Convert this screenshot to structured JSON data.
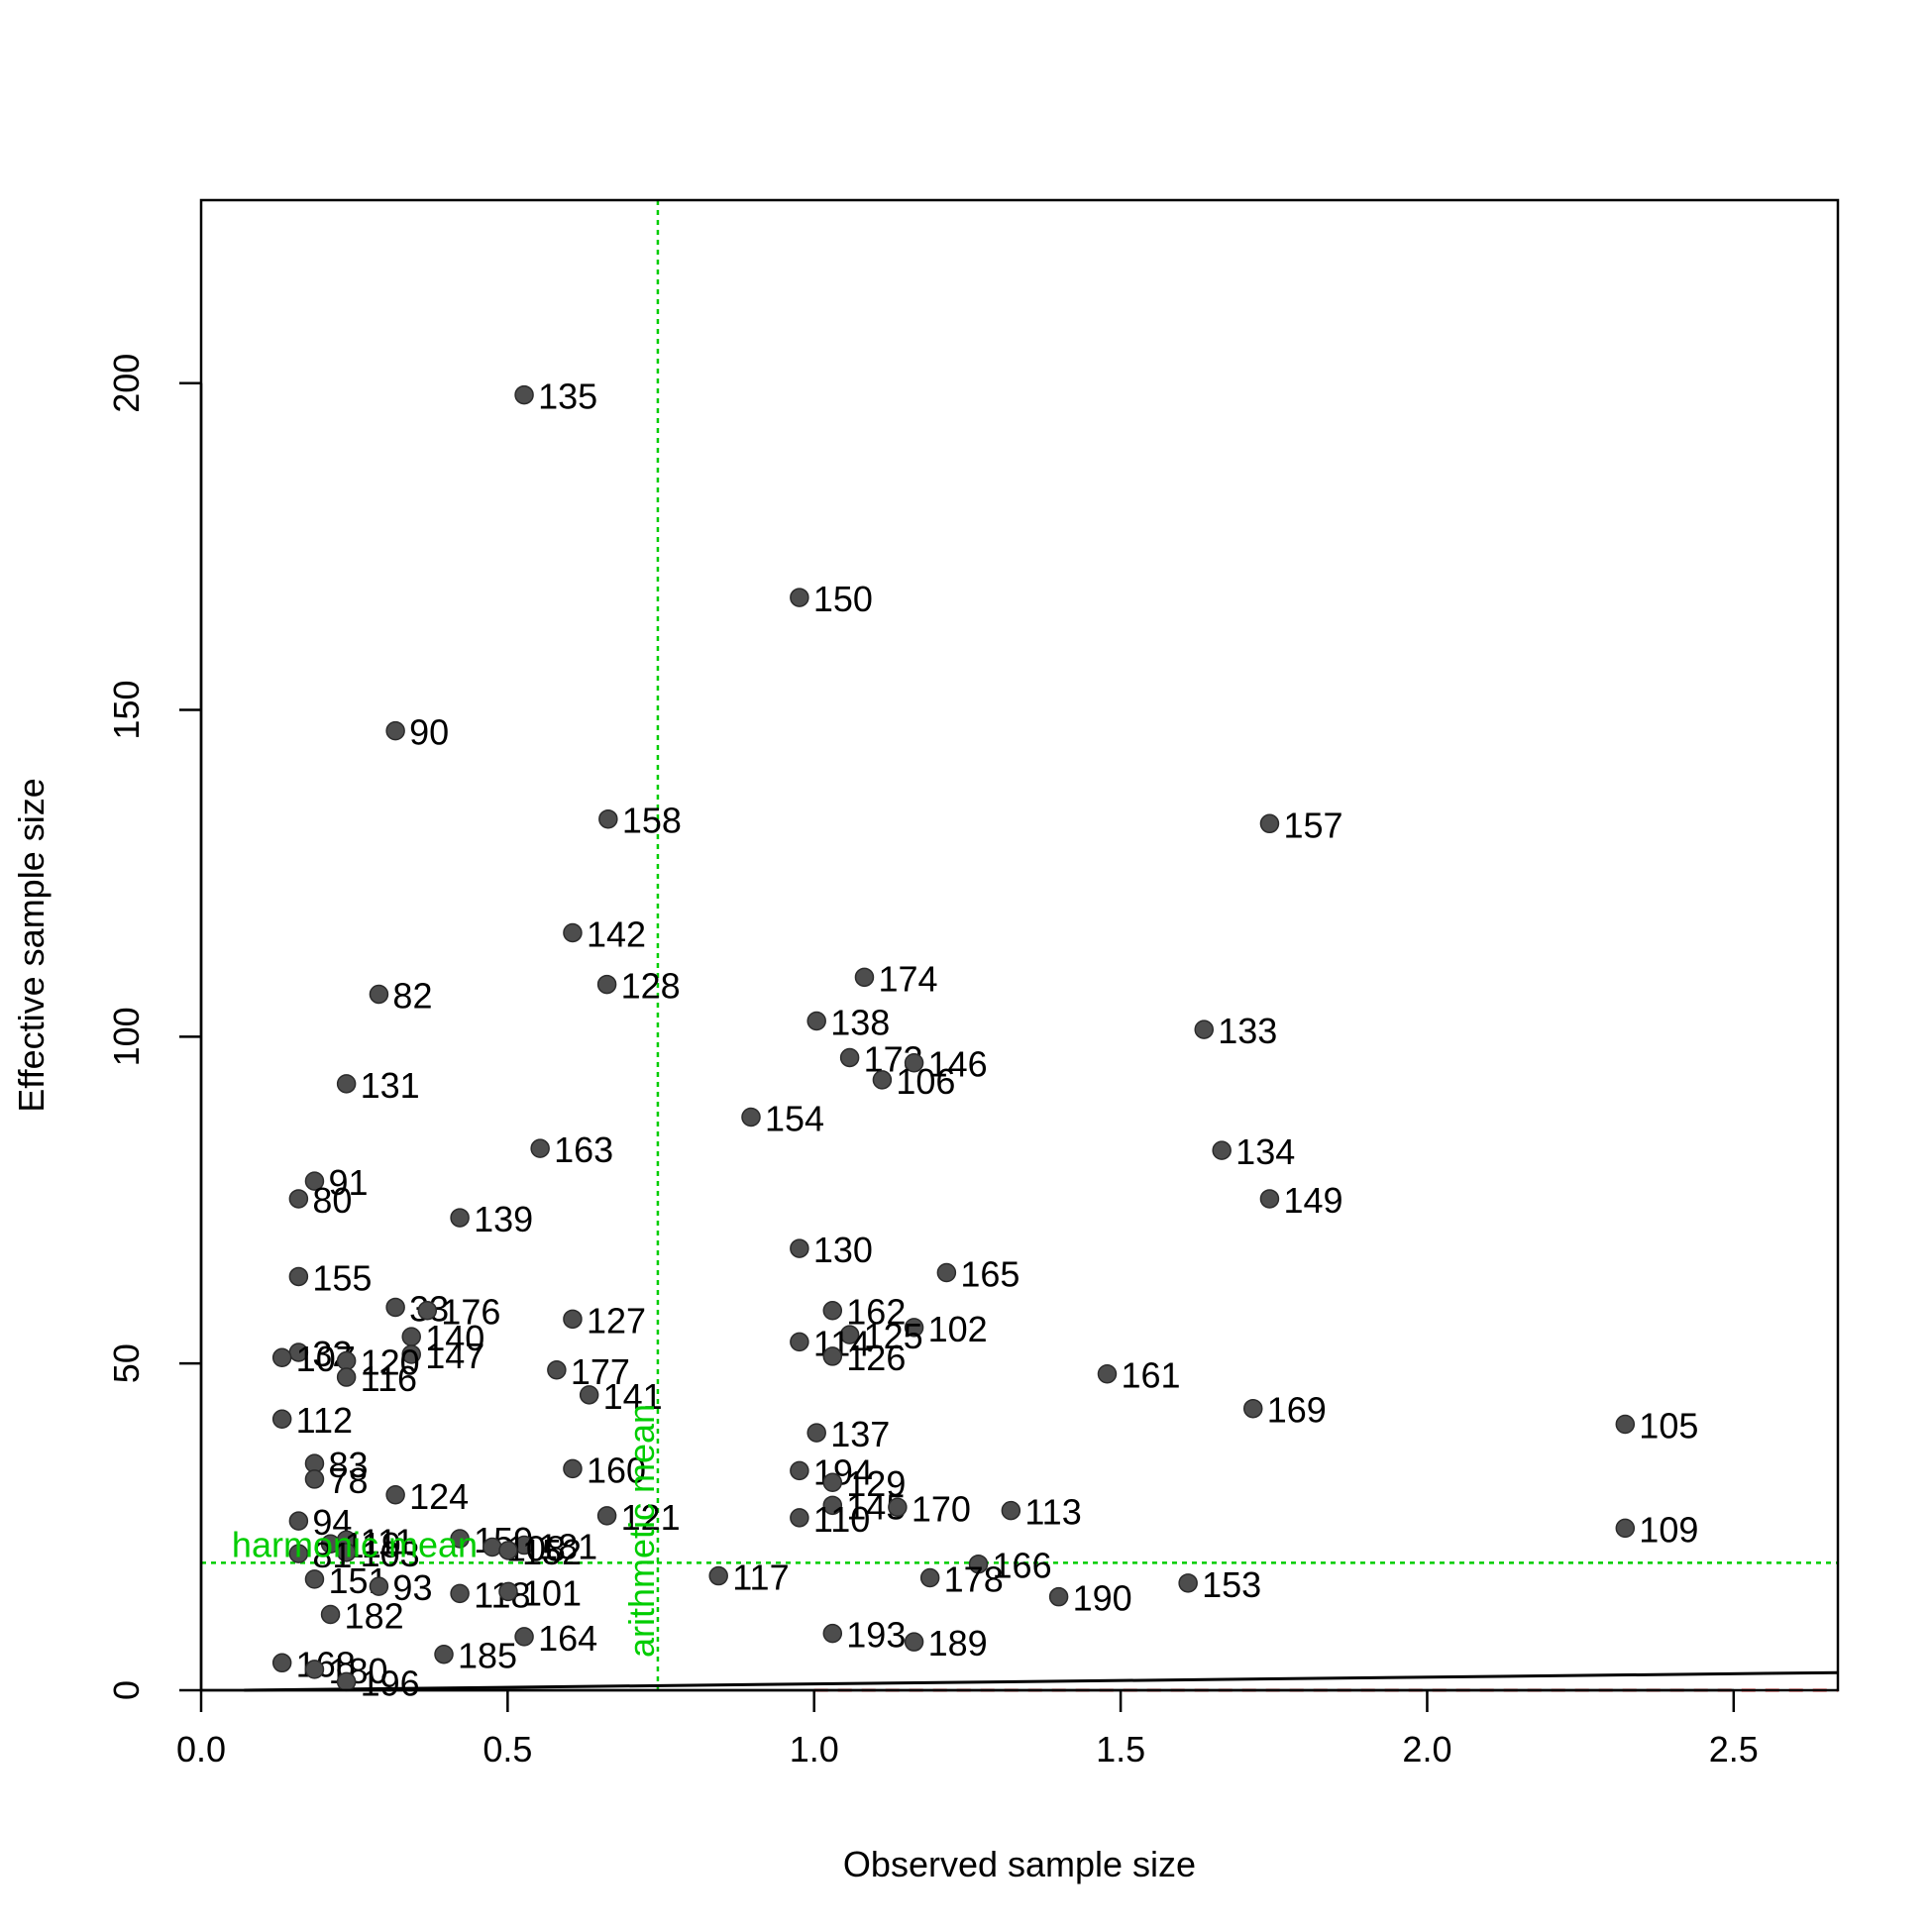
{
  "chart_data": {
    "type": "scatter",
    "xlabel": "Observed sample size",
    "ylabel": "Effective sample size",
    "xlim": [
      0.0,
      2.67
    ],
    "ylim": [
      0,
      228
    ],
    "xticks": [
      0.0,
      0.5,
      1.0,
      1.5,
      2.0,
      2.5
    ],
    "xtick_labels": [
      "0.0",
      "0.5",
      "1.0",
      "1.5",
      "2.0",
      "2.5"
    ],
    "yticks": [
      0,
      50,
      100,
      150,
      200
    ],
    "ytick_labels": [
      "0",
      "50",
      "100",
      "150",
      "200"
    ],
    "grid": false,
    "point_color": "#4d4d4d",
    "reference_color": "#00cd00",
    "null_line_color": "#ff0000",
    "reference_lines": [
      {
        "orientation": "vertical",
        "value": 0.745,
        "label": "arithmetic mean"
      },
      {
        "orientation": "horizontal",
        "value": 19.5,
        "label": "harmonic mean"
      }
    ],
    "trend_line": {
      "x": [
        0.07,
        2.67
      ],
      "y": [
        0.0,
        2.7
      ]
    },
    "null_line": {
      "x": [
        1.0,
        2.67
      ],
      "y": [
        0.0,
        0.0
      ]
    },
    "points": [
      {
        "label": "135",
        "x": 0.527,
        "y": 198.2
      },
      {
        "label": "150",
        "x": 0.976,
        "y": 167.2
      },
      {
        "label": "90",
        "x": 0.317,
        "y": 146.8
      },
      {
        "label": "158",
        "x": 0.664,
        "y": 133.3
      },
      {
        "label": "157",
        "x": 1.743,
        "y": 132.6
      },
      {
        "label": "142",
        "x": 0.606,
        "y": 115.9
      },
      {
        "label": "174",
        "x": 1.082,
        "y": 109.1
      },
      {
        "label": "128",
        "x": 0.662,
        "y": 108.0
      },
      {
        "label": "82",
        "x": 0.29,
        "y": 106.5
      },
      {
        "label": "138",
        "x": 1.004,
        "y": 102.4
      },
      {
        "label": "133",
        "x": 1.636,
        "y": 101.1
      },
      {
        "label": "173",
        "x": 1.058,
        "y": 96.8
      },
      {
        "label": "146",
        "x": 1.163,
        "y": 96.0
      },
      {
        "label": "106",
        "x": 1.111,
        "y": 93.4
      },
      {
        "label": "131",
        "x": 0.237,
        "y": 92.8
      },
      {
        "label": "154",
        "x": 0.897,
        "y": 87.7
      },
      {
        "label": "163",
        "x": 0.553,
        "y": 82.9
      },
      {
        "label": "134",
        "x": 1.665,
        "y": 82.6
      },
      {
        "label": "91",
        "x": 0.185,
        "y": 77.9
      },
      {
        "label": "80",
        "x": 0.159,
        "y": 75.2
      },
      {
        "label": "149",
        "x": 1.743,
        "y": 75.2
      },
      {
        "label": "139",
        "x": 0.422,
        "y": 72.3
      },
      {
        "label": "130",
        "x": 0.976,
        "y": 67.6
      },
      {
        "label": "165",
        "x": 1.216,
        "y": 63.9
      },
      {
        "label": "155",
        "x": 0.159,
        "y": 63.3
      },
      {
        "label": "33",
        "x": 0.317,
        "y": 58.6
      },
      {
        "label": "176",
        "x": 0.369,
        "y": 58.1
      },
      {
        "label": "162",
        "x": 1.03,
        "y": 58.1
      },
      {
        "label": "127",
        "x": 0.606,
        "y": 56.8
      },
      {
        "label": "102",
        "x": 1.163,
        "y": 55.5
      },
      {
        "label": "125",
        "x": 1.058,
        "y": 54.4
      },
      {
        "label": "140",
        "x": 0.343,
        "y": 54.1
      },
      {
        "label": "114",
        "x": 0.976,
        "y": 53.3
      },
      {
        "label": "32",
        "x": 0.159,
        "y": 51.7
      },
      {
        "label": "147",
        "x": 0.343,
        "y": 51.4
      },
      {
        "label": "126",
        "x": 1.03,
        "y": 51.1
      },
      {
        "label": "107",
        "x": 0.132,
        "y": 50.9
      },
      {
        "label": "120",
        "x": 0.237,
        "y": 50.4
      },
      {
        "label": "177",
        "x": 0.58,
        "y": 49.0
      },
      {
        "label": "161",
        "x": 1.478,
        "y": 48.4
      },
      {
        "label": "116",
        "x": 0.237,
        "y": 47.9
      },
      {
        "label": "141",
        "x": 0.633,
        "y": 45.2
      },
      {
        "label": "169",
        "x": 1.716,
        "y": 43.1
      },
      {
        "label": "112",
        "x": 0.132,
        "y": 41.5
      },
      {
        "label": "105",
        "x": 2.323,
        "y": 40.7
      },
      {
        "label": "137",
        "x": 1.004,
        "y": 39.4
      },
      {
        "label": "83",
        "x": 0.185,
        "y": 34.7
      },
      {
        "label": "160",
        "x": 0.606,
        "y": 33.9
      },
      {
        "label": "194",
        "x": 0.976,
        "y": 33.6
      },
      {
        "label": "78",
        "x": 0.185,
        "y": 32.3
      },
      {
        "label": "129",
        "x": 1.03,
        "y": 31.8
      },
      {
        "label": "124",
        "x": 0.317,
        "y": 29.9
      },
      {
        "label": "145",
        "x": 1.03,
        "y": 28.3
      },
      {
        "label": "170",
        "x": 1.136,
        "y": 28.0
      },
      {
        "label": "113",
        "x": 1.321,
        "y": 27.5
      },
      {
        "label": "121",
        "x": 0.662,
        "y": 26.7
      },
      {
        "label": "110",
        "x": 0.976,
        "y": 26.4
      },
      {
        "label": "94",
        "x": 0.159,
        "y": 25.9
      },
      {
        "label": "109",
        "x": 2.323,
        "y": 24.8
      },
      {
        "label": "159",
        "x": 0.422,
        "y": 23.2
      },
      {
        "label": "111",
        "x": 0.237,
        "y": 23.0
      },
      {
        "label": "119",
        "x": 0.211,
        "y": 22.4
      },
      {
        "label": "181",
        "x": 0.527,
        "y": 22.2
      },
      {
        "label": "108",
        "x": 0.475,
        "y": 21.9
      },
      {
        "label": "152",
        "x": 0.501,
        "y": 21.4
      },
      {
        "label": "103",
        "x": 0.237,
        "y": 21.1
      },
      {
        "label": "81",
        "x": 0.159,
        "y": 20.9
      },
      {
        "label": "166",
        "x": 1.268,
        "y": 19.3
      },
      {
        "label": "117",
        "x": 0.844,
        "y": 17.5
      },
      {
        "label": "178",
        "x": 1.189,
        "y": 17.2
      },
      {
        "label": "151",
        "x": 0.185,
        "y": 17.0
      },
      {
        "label": "153",
        "x": 1.61,
        "y": 16.4
      },
      {
        "label": "93",
        "x": 0.29,
        "y": 15.9
      },
      {
        "label": "118",
        "x": 0.422,
        "y": 14.8
      },
      {
        "label": "101",
        "x": 0.501,
        "y": 15.1
      },
      {
        "label": "190",
        "x": 1.399,
        "y": 14.3
      },
      {
        "label": "182",
        "x": 0.211,
        "y": 11.6
      },
      {
        "label": "193",
        "x": 1.03,
        "y": 8.7
      },
      {
        "label": "164",
        "x": 0.527,
        "y": 8.2
      },
      {
        "label": "189",
        "x": 1.163,
        "y": 7.4
      },
      {
        "label": "185",
        "x": 0.396,
        "y": 5.5
      },
      {
        "label": "168",
        "x": 0.132,
        "y": 4.2
      },
      {
        "label": "180",
        "x": 0.185,
        "y": 3.2
      },
      {
        "label": "196",
        "x": 0.237,
        "y": 1.3
      }
    ]
  }
}
